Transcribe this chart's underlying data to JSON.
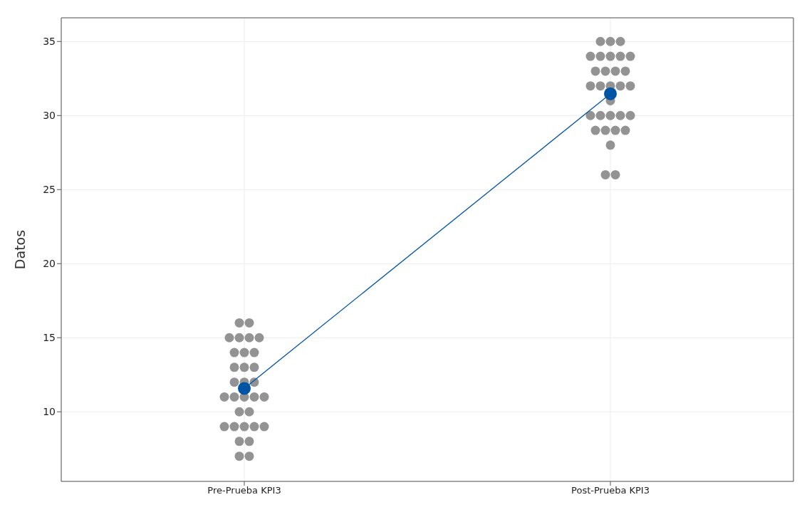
{
  "chart_data": {
    "type": "scatter",
    "ylabel": "Datos",
    "categories": [
      "Pre-Prueba KPI3",
      "Post-Prueba KPI3"
    ],
    "ylim": [
      5.3,
      36.6
    ],
    "yticks": [
      10,
      15,
      20,
      25,
      30,
      35
    ],
    "grid": true,
    "series": [
      {
        "type": "scatter",
        "color": "#939393",
        "marker": "circle",
        "x": [
          "Pre-Prueba KPI3",
          "Pre-Prueba KPI3",
          "Pre-Prueba KPI3",
          "Pre-Prueba KPI3",
          "Pre-Prueba KPI3",
          "Pre-Prueba KPI3",
          "Pre-Prueba KPI3",
          "Pre-Prueba KPI3",
          "Pre-Prueba KPI3",
          "Pre-Prueba KPI3",
          "Pre-Prueba KPI3",
          "Pre-Prueba KPI3",
          "Pre-Prueba KPI3",
          "Pre-Prueba KPI3",
          "Pre-Prueba KPI3",
          "Pre-Prueba KPI3",
          "Pre-Prueba KPI3",
          "Pre-Prueba KPI3",
          "Pre-Prueba KPI3",
          "Pre-Prueba KPI3",
          "Pre-Prueba KPI3",
          "Pre-Prueba KPI3",
          "Pre-Prueba KPI3",
          "Pre-Prueba KPI3",
          "Pre-Prueba KPI3",
          "Pre-Prueba KPI3",
          "Pre-Prueba KPI3",
          "Pre-Prueba KPI3",
          "Pre-Prueba KPI3",
          "Pre-Prueba KPI3",
          "Pre-Prueba KPI3",
          "Post-Prueba KPI3",
          "Post-Prueba KPI3",
          "Post-Prueba KPI3",
          "Post-Prueba KPI3",
          "Post-Prueba KPI3",
          "Post-Prueba KPI3",
          "Post-Prueba KPI3",
          "Post-Prueba KPI3",
          "Post-Prueba KPI3",
          "Post-Prueba KPI3",
          "Post-Prueba KPI3",
          "Post-Prueba KPI3",
          "Post-Prueba KPI3",
          "Post-Prueba KPI3",
          "Post-Prueba KPI3",
          "Post-Prueba KPI3",
          "Post-Prueba KPI3",
          "Post-Prueba KPI3",
          "Post-Prueba KPI3",
          "Post-Prueba KPI3",
          "Post-Prueba KPI3",
          "Post-Prueba KPI3",
          "Post-Prueba KPI3",
          "Post-Prueba KPI3",
          "Post-Prueba KPI3",
          "Post-Prueba KPI3",
          "Post-Prueba KPI3",
          "Post-Prueba KPI3",
          "Post-Prueba KPI3",
          "Post-Prueba KPI3"
        ],
        "values": [
          16,
          16,
          15,
          15,
          15,
          15,
          14,
          14,
          14,
          13,
          13,
          13,
          12,
          12,
          12,
          11,
          11,
          11,
          11,
          11,
          10,
          10,
          9,
          9,
          9,
          9,
          9,
          8,
          8,
          7,
          7,
          35,
          35,
          35,
          34,
          34,
          34,
          34,
          34,
          33,
          33,
          33,
          33,
          32,
          32,
          32,
          32,
          32,
          31,
          30,
          30,
          30,
          30,
          30,
          29,
          29,
          29,
          29,
          28,
          26,
          26
        ]
      },
      {
        "type": "line",
        "color": "#0054a6",
        "marker": "circle",
        "x": [
          "Pre-Prueba KPI3",
          "Post-Prueba KPI3"
        ],
        "values": [
          11.58,
          31.47
        ]
      }
    ]
  }
}
